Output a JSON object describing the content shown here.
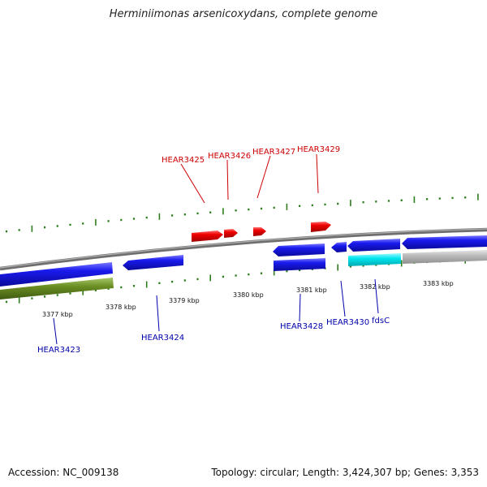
{
  "title": "Herminiimonas arsenicoxydans, complete genome",
  "footer": {
    "accession": "Accession: NC_009138",
    "summary": "Topology: circular; Length: 3,424,307 bp; Genes: 3,353"
  },
  "colors": {
    "forward_gene": "#ee0000",
    "reverse_gene": "#1a1aee",
    "highlight_gene": "#00e5ee",
    "green_track": "#6b8e23",
    "grey_track": "#bbbbbb",
    "backbone": "#808080",
    "ticks": "#2e7d1e",
    "label_red": "#cc0000",
    "label_blue": "#0000aa"
  },
  "kbp_labels": [
    "3377 kbp",
    "3378 kbp",
    "3379 kbp",
    "3380 kbp",
    "3381 kbp",
    "3382 kbp",
    "3383 kbp"
  ],
  "gene_labels_top": [
    "HEAR3425",
    "HEAR3426",
    "HEAR3427",
    "HEAR3429"
  ],
  "gene_labels_bottom": [
    "HEAR3423",
    "HEAR3424",
    "HEAR3428",
    "HEAR3430",
    "fdsC"
  ]
}
